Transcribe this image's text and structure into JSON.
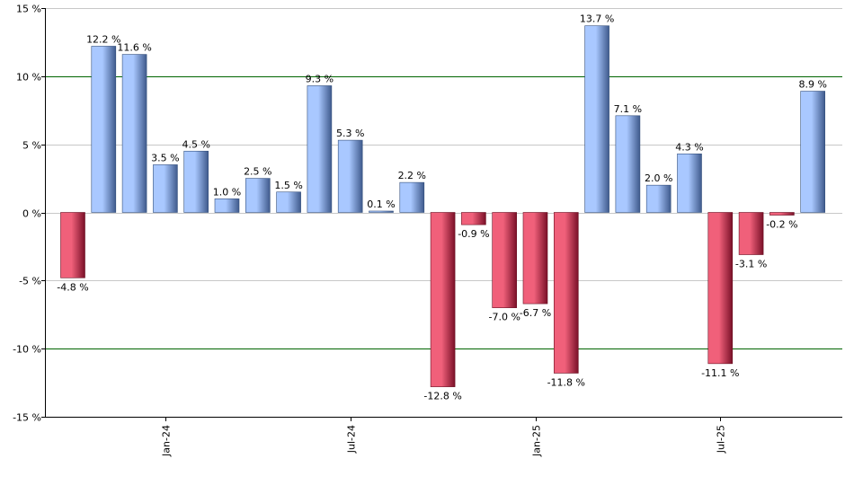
{
  "chart_data": {
    "type": "bar",
    "title": "",
    "xlabel": "",
    "ylabel": "",
    "ylim": [
      -15,
      15
    ],
    "y_ticks": [
      15,
      10,
      5,
      0,
      -5,
      -10,
      -15
    ],
    "y_tick_labels": [
      "15 %",
      "10 %",
      "5 %",
      "0 %",
      "-5 %",
      "-10 %",
      "-15 %"
    ],
    "highlight_gridlines": [
      10,
      -10
    ],
    "x_tick_labels": [
      {
        "label": "Jan-24",
        "index": 3
      },
      {
        "label": "Jul-24",
        "index": 9
      },
      {
        "label": "Jan-25",
        "index": 15
      },
      {
        "label": "Jul-25",
        "index": 21
      }
    ],
    "values": [
      -4.8,
      12.2,
      11.6,
      3.5,
      4.5,
      1.0,
      2.5,
      1.5,
      9.3,
      5.3,
      0.1,
      2.2,
      -12.8,
      -0.9,
      -7.0,
      -6.7,
      -11.8,
      13.7,
      7.1,
      2.0,
      4.3,
      -11.1,
      -3.1,
      -0.2,
      8.9
    ],
    "value_labels": [
      "-4.8 %",
      "12.2 %",
      "11.6 %",
      "3.5 %",
      "4.5 %",
      "1.0 %",
      "2.5 %",
      "1.5 %",
      "9.3 %",
      "5.3 %",
      "0.1 %",
      "2.2 %",
      "-12.8 %",
      "-0.9 %",
      "-7.0 %",
      "-6.7 %",
      "-11.8 %",
      "13.7 %",
      "7.1 %",
      "2.0 %",
      "4.3 %",
      "-11.1 %",
      "-3.1 %",
      "-0.2 %",
      "8.9 %"
    ],
    "grid": true,
    "colors": {
      "positive_light": "#a9c8ff",
      "positive_dark": "#3f5a8c",
      "negative_light": "#f0607a",
      "negative_dark": "#7a1028",
      "gridline": "#c8c8c8",
      "highlight_gridline": "#006400",
      "axis": "#000000"
    }
  }
}
